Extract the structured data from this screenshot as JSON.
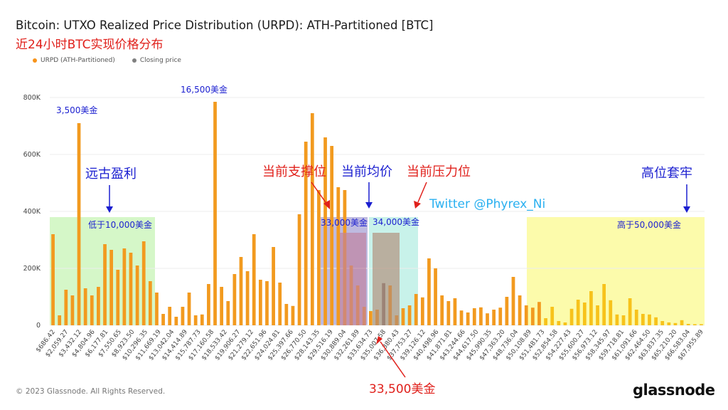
{
  "title": "Bitcoin: UTXO Realized Price Distribution (URPD): ATH-Partitioned [BTC]",
  "subtitle": "近24小时BTC实现价格分布",
  "legend": [
    {
      "label": "URPD (ATH-Partitioned)",
      "color": "#f7931a"
    },
    {
      "label": "Closing price",
      "color": "#808080"
    }
  ],
  "footer": "© 2023 Glassnode. All Rights Reserved.",
  "logo": "glassnode",
  "colors": {
    "bar": "#f29a1f",
    "bar_light": "#f7c21b",
    "closing": "#777777",
    "green_zone": "#d5f7c8",
    "yellow_zone": "#fcfbab",
    "cyan_zone": "#c8f2ea",
    "purple_zone": "#a8a3d6",
    "pink_box": "#c07f9c",
    "brown_box": "#b08a76",
    "red_text": "#e0201b",
    "blue_text": "#1b1fd0",
    "twitter_text": "#2ab0f0"
  },
  "annotations": {
    "twitter": "Twitter @Phyrex_Ni",
    "ancient_profit": "远古盈利",
    "below_10k": "低于10,000美金",
    "label_3500": "3,500美金",
    "label_16500": "16,500美金",
    "support": "当前支撑位",
    "avg_price": "当前均价",
    "resistance": "当前压力位",
    "label_33000": "33,000美金",
    "label_34000": "34,000美金",
    "label_33500": "33,500美金",
    "trapped_high": "高位套牢",
    "above_50k": "高于50,000美金"
  },
  "chart_data": {
    "type": "bar",
    "title": "Bitcoin: UTXO Realized Price Distribution (URPD): ATH-Partitioned [BTC]",
    "ylim": [
      0,
      850000
    ],
    "y_ticks": [
      0,
      200000,
      400000,
      600000,
      800000
    ],
    "y_tick_labels": [
      "0",
      "200K",
      "400K",
      "600K",
      "800K"
    ],
    "x_tick_labels": [
      "$686.42",
      "$2,059.27",
      "$3,432.12",
      "$4,804.96",
      "$6,177.81",
      "$7,550.65",
      "$8,923.50",
      "$10,296.35",
      "$11,669.19",
      "$13,042.04",
      "$14,414.89",
      "$15,787.73",
      "$17,160.58",
      "$18,533.42",
      "$19,906.27",
      "$21,279.12",
      "$22,651.96",
      "$24,024.81",
      "$25,397.66",
      "$26,770.50",
      "$28,143.35",
      "$29,516.19",
      "$30,889.04",
      "$32,261.89",
      "$33,634.73",
      "$35,007.58",
      "$36,380.43",
      "$37,753.27",
      "$39,126.12",
      "$40,498.96",
      "$41,871.81",
      "$43,244.66",
      "$44,617.50",
      "$45,990.35",
      "$47,363.20",
      "$48,736.04",
      "$50,108.89",
      "$51,481.73",
      "$52,854.58",
      "$54,227.43",
      "$55,600.27",
      "$56,973.12",
      "$58,345.97",
      "$59,718.81",
      "$61,091.66",
      "$62,464.50",
      "$63,837.35",
      "$65,210.20",
      "$66,583.04",
      "$67,955.89"
    ],
    "values": [
      320000,
      35000,
      125000,
      105000,
      710000,
      130000,
      105000,
      135000,
      285000,
      265000,
      195000,
      270000,
      255000,
      210000,
      295000,
      155000,
      115000,
      40000,
      65000,
      30000,
      65000,
      115000,
      35000,
      38000,
      145000,
      785000,
      135000,
      85000,
      180000,
      240000,
      190000,
      320000,
      160000,
      155000,
      275000,
      150000,
      75000,
      68000,
      390000,
      645000,
      745000,
      475000,
      660000,
      630000,
      485000,
      475000,
      210000,
      140000,
      65000,
      50000,
      55000,
      148000,
      140000,
      35000,
      60000,
      70000,
      110000,
      98000,
      235000,
      200000,
      105000,
      85000,
      95000,
      52000,
      45000,
      60000,
      63000,
      42000,
      55000,
      62000,
      100000,
      170000,
      105000,
      70000,
      62000,
      82000,
      25000,
      65000,
      15000,
      10000,
      58000,
      90000,
      80000,
      120000,
      70000,
      145000,
      88000,
      38000,
      35000,
      95000,
      55000,
      40000,
      38000,
      28000,
      15000,
      10000,
      8000,
      18000,
      5000,
      4000,
      4000
    ],
    "closing_price_index": 51,
    "closing_price_label": "Closing price",
    "series_name": "URPD (ATH-Partitioned)"
  }
}
